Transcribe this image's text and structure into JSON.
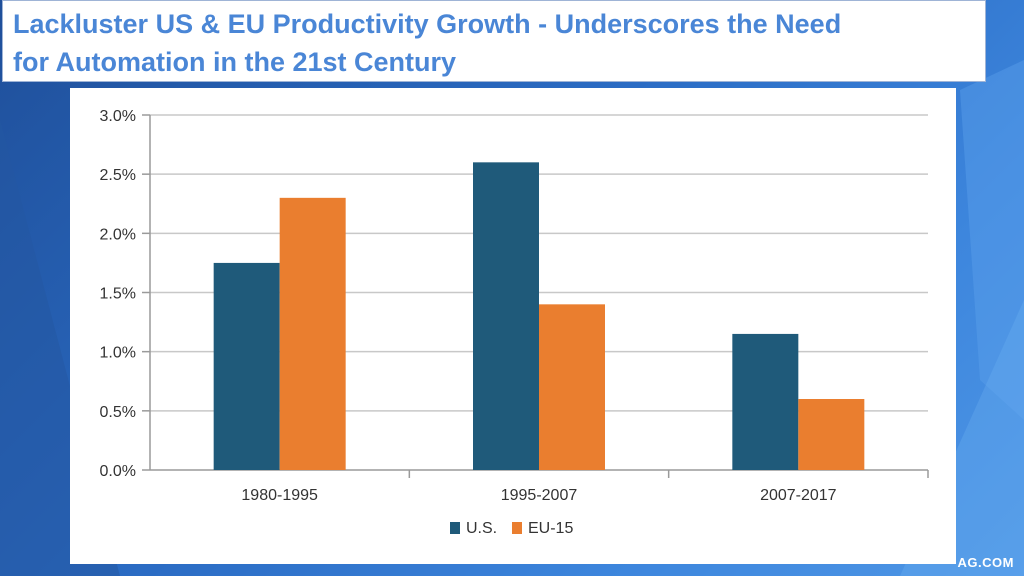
{
  "slide": {
    "title_line1": "Lackluster US & EU Productivity Growth - Underscores the Need",
    "title_line2": "for Automation in the 21st Century",
    "watermark": "AG.COM",
    "title_color": "#4a86d6"
  },
  "chart_data": {
    "type": "bar",
    "title": "",
    "xlabel": "",
    "ylabel": "",
    "categories": [
      "1980-1995",
      "1995-2007",
      "2007-2017"
    ],
    "series": [
      {
        "name": "U.S.",
        "color": "#1f5a7a",
        "values": [
          1.75,
          2.6,
          1.15
        ]
      },
      {
        "name": "EU-15",
        "color": "#ea7e2f",
        "values": [
          2.3,
          1.4,
          0.6
        ]
      }
    ],
    "ylim": [
      0,
      3.0
    ],
    "yticks": [
      "0.0%",
      "0.5%",
      "1.0%",
      "1.5%",
      "2.0%",
      "2.5%",
      "3.0%"
    ],
    "ytick_values": [
      0,
      0.5,
      1.0,
      1.5,
      2.0,
      2.5,
      3.0
    ],
    "grid": true,
    "legend_position": "bottom-center"
  }
}
